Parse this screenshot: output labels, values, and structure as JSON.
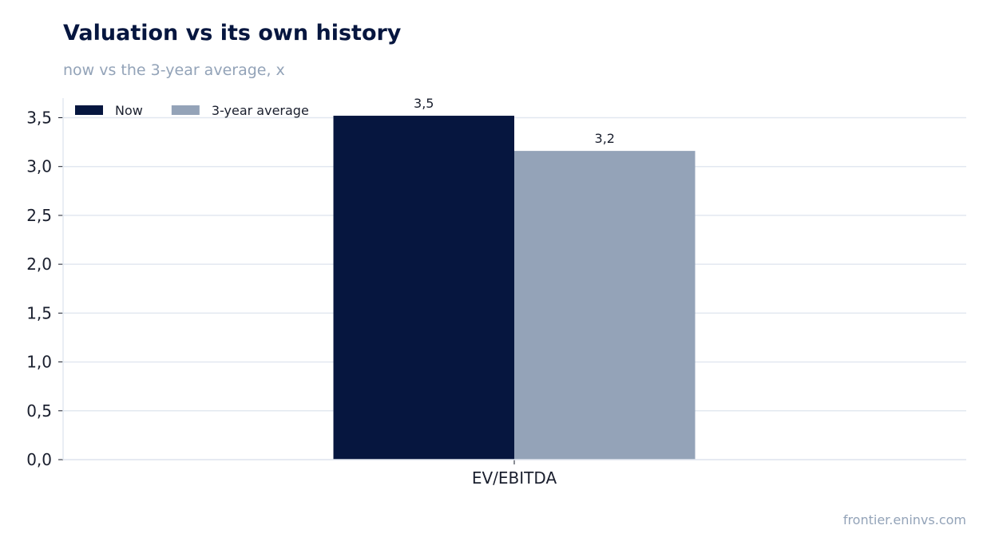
{
  "header": {
    "title": "Valuation vs its own history",
    "subtitle": "now vs the 3-year average, x"
  },
  "footer": {
    "source": "frontier.eninvs.com"
  },
  "chart_data": {
    "type": "bar",
    "title": "Valuation vs its own history",
    "subtitle": "now vs the 3-year average, x",
    "xlabel": "",
    "ylabel": "",
    "categories": [
      "EV/EBITDA"
    ],
    "series": [
      {
        "name": "Now",
        "values": [
          3.52
        ],
        "value_labels": [
          "3,5"
        ],
        "color": "#06163f"
      },
      {
        "name": "3-year average",
        "values": [
          3.16
        ],
        "value_labels": [
          "3,2"
        ],
        "color": "#94a3b8"
      }
    ],
    "ylim": [
      0,
      3.7
    ],
    "y_ticks": [
      0,
      0.5,
      1.0,
      1.5,
      2.0,
      2.5,
      3.0,
      3.5
    ],
    "y_tick_labels": [
      "0,0",
      "0,5",
      "1,0",
      "1,5",
      "2,0",
      "2,5",
      "3,0",
      "3,5"
    ],
    "grid": "horizontal",
    "legend_position": "top-left"
  }
}
